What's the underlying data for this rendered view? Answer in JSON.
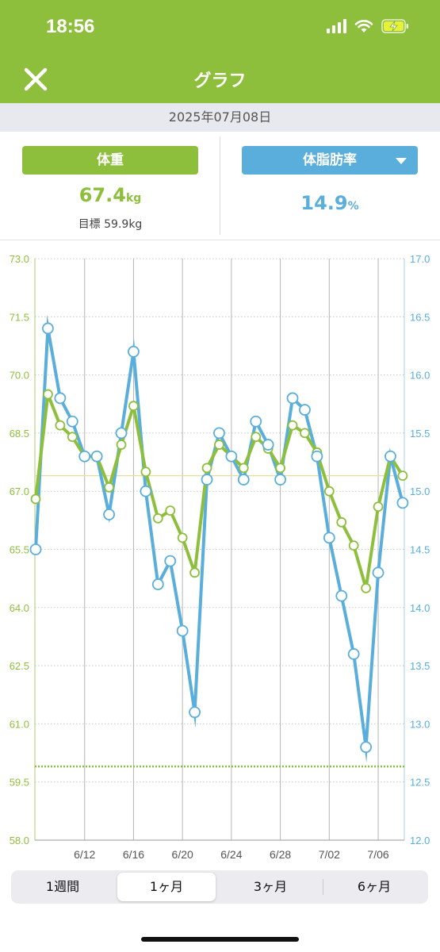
{
  "status": {
    "time": "18:56"
  },
  "nav": {
    "title": "グラフ"
  },
  "date": "2025年07月08日",
  "weight": {
    "label": "体重",
    "value": "67.4",
    "unit": "kg",
    "goal_label": "目標",
    "goal_value": "59.9kg"
  },
  "fat": {
    "label": "体脂肪率",
    "value": "14.9",
    "unit": "%"
  },
  "tabs": [
    {
      "label": "1週間",
      "active": false
    },
    {
      "label": "1ヶ月",
      "active": true
    },
    {
      "label": "3ヶ月",
      "active": false
    },
    {
      "label": "6ヶ月",
      "active": false
    }
  ],
  "colors": {
    "weight": "#8ebf3c",
    "fat": "#5aaedc",
    "header": "#8ebf3c"
  },
  "chart_data": {
    "type": "line",
    "x_tick_labels": [
      "6/12",
      "6/16",
      "6/20",
      "6/24",
      "6/28",
      "7/02",
      "7/06"
    ],
    "x_tick_dates": [
      "6/12",
      "6/16",
      "6/20",
      "6/24",
      "6/28",
      "7/02",
      "7/06"
    ],
    "dates": [
      "6/08",
      "6/09",
      "6/10",
      "6/11",
      "6/12",
      "6/13",
      "6/14",
      "6/15",
      "6/16",
      "6/17",
      "6/18",
      "6/19",
      "6/20",
      "6/21",
      "6/22",
      "6/23",
      "6/24",
      "6/25",
      "6/26",
      "6/27",
      "6/28",
      "6/29",
      "6/30",
      "7/01",
      "7/02",
      "7/03",
      "7/04",
      "7/05",
      "7/06",
      "7/07",
      "7/08"
    ],
    "y_left": {
      "min": 58.0,
      "max": 73.0,
      "ticks": [
        "58.0",
        "59.5",
        "61.0",
        "62.5",
        "64.0",
        "65.5",
        "67.0",
        "68.5",
        "70.0",
        "71.5",
        "73.0"
      ]
    },
    "y_right": {
      "min": 12.0,
      "max": 17.0,
      "ticks": [
        "12.0",
        "12.5",
        "13.0",
        "13.5",
        "14.0",
        "14.5",
        "15.0",
        "15.5",
        "16.0",
        "16.5",
        "17.0"
      ]
    },
    "series": [
      {
        "axis": "left",
        "color": "#8ebf3c",
        "values": [
          66.8,
          69.5,
          68.7,
          68.4,
          67.9,
          67.9,
          67.1,
          68.2,
          69.2,
          67.5,
          66.3,
          66.5,
          65.8,
          64.9,
          67.6,
          68.2,
          67.9,
          67.6,
          68.4,
          68.1,
          67.6,
          68.7,
          68.5,
          68.0,
          67.0,
          66.2,
          65.6,
          64.5,
          66.6,
          67.9,
          67.4
        ]
      },
      {
        "axis": "right",
        "color": "#5aaedc",
        "values": [
          14.5,
          16.4,
          15.8,
          15.6,
          15.3,
          15.3,
          14.8,
          15.5,
          16.2,
          15.0,
          14.2,
          14.4,
          13.8,
          13.1,
          15.1,
          15.5,
          15.3,
          15.1,
          15.6,
          15.4,
          15.1,
          15.8,
          15.7,
          15.3,
          14.6,
          14.1,
          13.6,
          12.8,
          14.3,
          15.3,
          14.9
        ]
      }
    ],
    "reference_lines": [
      {
        "axis": "left",
        "value": 67.4,
        "style": "thin-yellow"
      },
      {
        "axis": "left",
        "value": 59.9,
        "style": "dotted-green"
      }
    ]
  }
}
